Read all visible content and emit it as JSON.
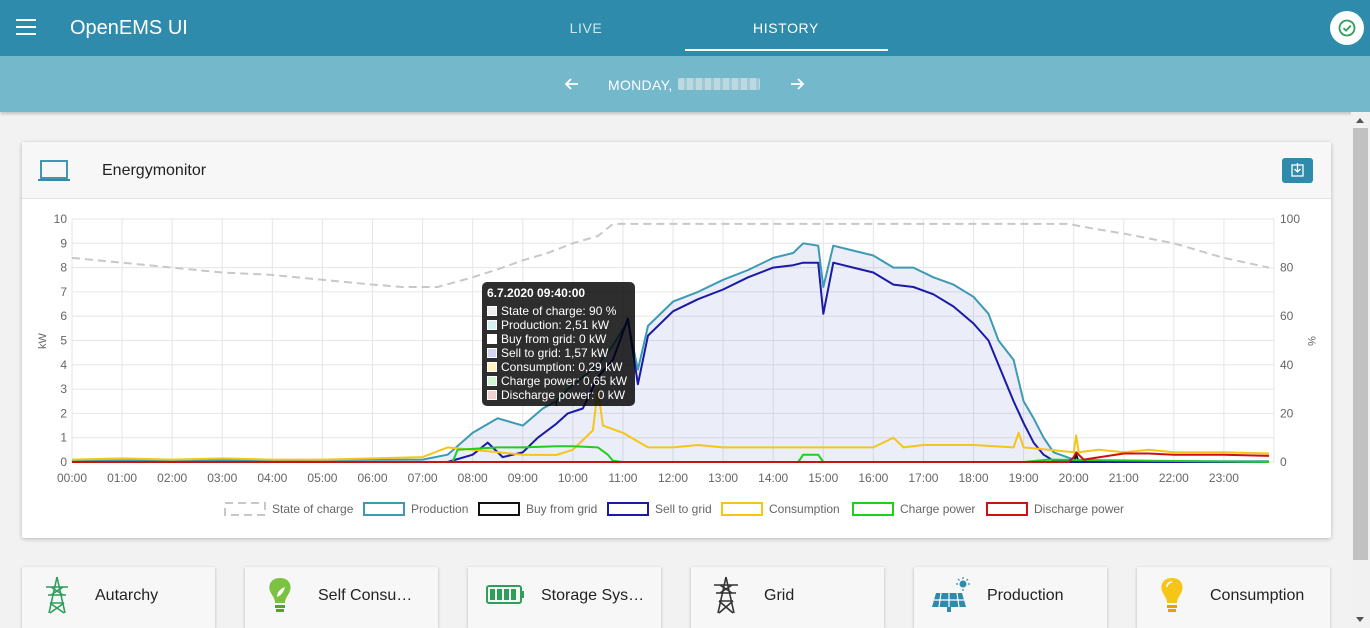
{
  "header": {
    "app_title": "OpenEMS UI",
    "tabs": [
      {
        "label": "LIVE",
        "active": false
      },
      {
        "label": "HISTORY",
        "active": true
      }
    ],
    "status_icon": "check-circle-icon"
  },
  "date_nav": {
    "day_label": "MONDAY,",
    "prev_icon": "arrow-left-icon",
    "next_icon": "arrow-right-icon"
  },
  "card": {
    "title": "Energymonitor",
    "icon": "laptop-icon",
    "download_icon": "download-icon"
  },
  "tooltip": {
    "title": "6.7.2020 09:40:00",
    "rows": [
      {
        "text": "State of charge: 90 %",
        "color": "#eeeeee"
      },
      {
        "text": "Production: 2,51 kW",
        "color": "#d9eef5"
      },
      {
        "text": "Buy from grid: 0 kW",
        "color": "#ffffff"
      },
      {
        "text": "Sell to grid: 1,57 kW",
        "color": "#d4d4f5"
      },
      {
        "text": "Consumption: 0,29 kW",
        "color": "#fff3c4"
      },
      {
        "text": "Charge power: 0,65 kW",
        "color": "#d2f5d2"
      },
      {
        "text": "Discharge power: 0 kW",
        "color": "#f5d2d2"
      }
    ]
  },
  "chart_data": {
    "type": "line",
    "title": "",
    "xlabel": "",
    "ylabel": "kW",
    "y2label": "%",
    "ylim": [
      0,
      10
    ],
    "y2lim": [
      0,
      100
    ],
    "yticks": [
      "0",
      "1",
      "2",
      "3",
      "4",
      "5",
      "6",
      "7",
      "8",
      "9",
      "10"
    ],
    "y2ticks": [
      "0",
      "20",
      "40",
      "60",
      "80",
      "100"
    ],
    "x_ticks": [
      "00:00",
      "01:00",
      "02:00",
      "03:00",
      "04:00",
      "05:00",
      "06:00",
      "07:00",
      "08:00",
      "09:00",
      "10:00",
      "11:00",
      "12:00",
      "13:00",
      "14:00",
      "15:00",
      "16:00",
      "17:00",
      "18:00",
      "19:00",
      "20:00",
      "21:00",
      "22:00",
      "23:00"
    ],
    "legend_position": "bottom",
    "series": [
      {
        "name": "State of charge",
        "color": "#c8c8c8",
        "dashed": true,
        "axis": "right",
        "x": [
          0,
          0.5,
          1,
          2,
          3,
          4,
          5,
          6,
          6.6,
          7.3,
          8,
          8.6,
          9,
          9.5,
          10,
          10.5,
          10.8,
          11,
          12,
          13,
          14,
          15,
          16,
          17,
          18,
          19,
          19.9,
          20.4,
          21,
          22,
          23,
          23.9
        ],
        "y": [
          84,
          83,
          82,
          80,
          78,
          77,
          75,
          73,
          72,
          72,
          76,
          80,
          83,
          86,
          90,
          93,
          98,
          98,
          98,
          98,
          98,
          98,
          98,
          98,
          98,
          98,
          98,
          96,
          94,
          90,
          84,
          80
        ]
      },
      {
        "name": "Production",
        "color": "#3c9ab5",
        "dashed": false,
        "axis": "left",
        "x": [
          0,
          7.0,
          7.5,
          8.0,
          8.5,
          9.0,
          9.4,
          9.67,
          9.9,
          10.2,
          10.5,
          10.8,
          11.1,
          11.3,
          11.5,
          12,
          12.5,
          13,
          13.5,
          14,
          14.4,
          14.6,
          14.9,
          15.0,
          15.2,
          15.6,
          16,
          16.4,
          16.8,
          17.2,
          17.6,
          18,
          18.3,
          18.5,
          18.8,
          19.0,
          19.2,
          19.4,
          19.6,
          20,
          20.5,
          21,
          22,
          23,
          23.9
        ],
        "y": [
          0.05,
          0.1,
          0.3,
          1.2,
          1.8,
          1.5,
          2.2,
          2.51,
          3.0,
          3.5,
          4.0,
          4.8,
          5.8,
          3.8,
          5.6,
          6.6,
          7.0,
          7.5,
          7.9,
          8.4,
          8.6,
          9.0,
          8.9,
          7.2,
          8.9,
          8.7,
          8.5,
          8.0,
          8.0,
          7.6,
          7.3,
          6.8,
          6.1,
          5.0,
          4.2,
          2.5,
          1.8,
          1.0,
          0.4,
          0.1,
          0.05,
          0.05,
          0.03,
          0.03,
          0.03
        ]
      },
      {
        "name": "Buy from grid",
        "color": "#111111",
        "dashed": false,
        "axis": "left",
        "x": [
          0,
          20.0,
          20.05,
          20.1,
          21,
          23.9
        ],
        "y": [
          0,
          0,
          0.3,
          0,
          0,
          0
        ]
      },
      {
        "name": "Sell to grid",
        "color": "#1a1aa6",
        "dashed": false,
        "axis": "left",
        "x": [
          0,
          7.5,
          8.0,
          8.3,
          8.6,
          9.0,
          9.3,
          9.67,
          9.9,
          10.2,
          10.5,
          10.8,
          11.1,
          11.3,
          11.5,
          12,
          12.5,
          13,
          13.5,
          14,
          14.4,
          14.6,
          14.9,
          15.0,
          15.2,
          15.6,
          16,
          16.4,
          16.8,
          17.2,
          17.6,
          18,
          18.3,
          18.5,
          18.8,
          19.0,
          19.2,
          19.4,
          19.6,
          20,
          20.5,
          21,
          22,
          23,
          23.9
        ],
        "y": [
          0,
          0,
          0.3,
          0.8,
          0.2,
          0.4,
          1.0,
          1.57,
          2.0,
          2.2,
          3.5,
          4.2,
          5.9,
          3.2,
          5.2,
          6.2,
          6.7,
          7.1,
          7.6,
          8.0,
          8.1,
          8.2,
          8.2,
          6.1,
          8.2,
          8.0,
          7.8,
          7.3,
          7.2,
          6.9,
          6.4,
          5.7,
          5.0,
          4.0,
          2.5,
          1.6,
          0.8,
          0.3,
          0.05,
          0,
          0,
          0,
          0,
          0,
          0
        ]
      },
      {
        "name": "Consumption",
        "color": "#f5c518",
        "dashed": false,
        "axis": "left",
        "x": [
          0,
          1,
          2,
          3,
          4,
          5,
          6,
          7,
          7.5,
          8.0,
          8.5,
          9.0,
          9.67,
          10.0,
          10.4,
          10.5,
          10.6,
          11.0,
          11.5,
          12,
          12.5,
          13,
          13.5,
          14,
          15,
          16,
          16.4,
          16.6,
          17,
          18,
          18.8,
          18.9,
          19.0,
          19.5,
          20.0,
          20.05,
          20.1,
          20.5,
          21,
          21.5,
          22,
          23,
          23.9
        ],
        "y": [
          0.1,
          0.15,
          0.1,
          0.15,
          0.1,
          0.1,
          0.15,
          0.2,
          0.6,
          0.5,
          0.4,
          0.3,
          0.29,
          0.5,
          1.3,
          3.0,
          1.5,
          1.2,
          0.6,
          0.6,
          0.7,
          0.6,
          0.6,
          0.6,
          0.6,
          0.6,
          1.0,
          0.6,
          0.7,
          0.7,
          0.6,
          1.2,
          0.6,
          0.5,
          0.4,
          1.1,
          0.4,
          0.5,
          0.4,
          0.5,
          0.4,
          0.4,
          0.35
        ]
      },
      {
        "name": "Charge power",
        "color": "#22cc22",
        "dashed": false,
        "axis": "left",
        "x": [
          0,
          7.6,
          7.7,
          8.5,
          9.0,
          9.67,
          10.0,
          10.5,
          10.7,
          10.8,
          11,
          14.5,
          14.6,
          14.9,
          15.0,
          19.0,
          19.5,
          23.9
        ],
        "y": [
          0,
          0,
          0.5,
          0.6,
          0.6,
          0.65,
          0.65,
          0.6,
          0.3,
          0.05,
          0,
          0,
          0.3,
          0.3,
          0,
          0,
          0.1,
          0
        ]
      },
      {
        "name": "Discharge power",
        "color": "#cc1111",
        "dashed": false,
        "axis": "left",
        "x": [
          0,
          19.9,
          20.0,
          20.05,
          20.2,
          21.0,
          21.5,
          22,
          23,
          23.9
        ],
        "y": [
          0,
          0,
          0.2,
          0.4,
          0.1,
          0.35,
          0.35,
          0.3,
          0.3,
          0.25
        ]
      }
    ]
  },
  "widgets": [
    {
      "label": "Autarchy",
      "icon": "power-tower-icon",
      "color": "#2e9e5b"
    },
    {
      "label": "Self Consu…",
      "icon": "lightbulb-leaf-icon",
      "color": "#5cb85c"
    },
    {
      "label": "Storage Sys…",
      "icon": "battery-icon",
      "color": "#2e9e5b"
    },
    {
      "label": "Grid",
      "icon": "grid-tower-icon",
      "color": "#333333"
    },
    {
      "label": "Production",
      "icon": "solar-panel-icon",
      "color": "#2e8bab"
    },
    {
      "label": "Consumption",
      "icon": "lightbulb-icon",
      "color": "#f5c518"
    }
  ]
}
